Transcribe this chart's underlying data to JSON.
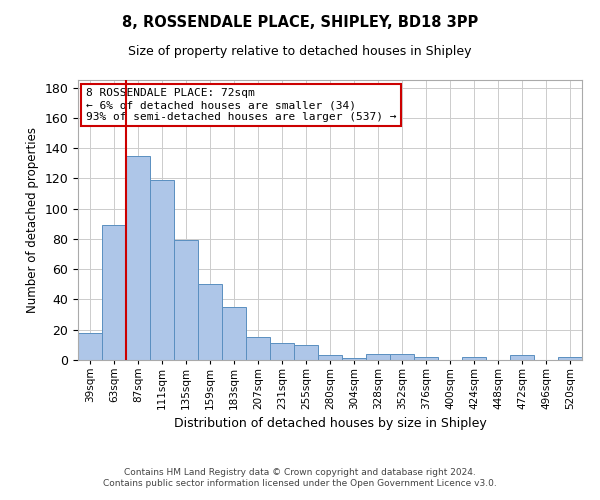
{
  "title1": "8, ROSSENDALE PLACE, SHIPLEY, BD18 3PP",
  "title2": "Size of property relative to detached houses in Shipley",
  "xlabel": "Distribution of detached houses by size in Shipley",
  "ylabel": "Number of detached properties",
  "footer1": "Contains HM Land Registry data © Crown copyright and database right 2024.",
  "footer2": "Contains public sector information licensed under the Open Government Licence v3.0.",
  "annotation_line1": "8 ROSSENDALE PLACE: 72sqm",
  "annotation_line2": "← 6% of detached houses are smaller (34)",
  "annotation_line3": "93% of semi-detached houses are larger (537) →",
  "bar_color": "#aec6e8",
  "bar_edge_color": "#5a8fc0",
  "vline_color": "#cc0000",
  "vline_x": 1.5,
  "categories": [
    "39sqm",
    "63sqm",
    "87sqm",
    "111sqm",
    "135sqm",
    "159sqm",
    "183sqm",
    "207sqm",
    "231sqm",
    "255sqm",
    "280sqm",
    "304sqm",
    "328sqm",
    "352sqm",
    "376sqm",
    "400sqm",
    "424sqm",
    "448sqm",
    "472sqm",
    "496sqm",
    "520sqm"
  ],
  "values": [
    18,
    89,
    135,
    119,
    79,
    50,
    35,
    15,
    11,
    10,
    3,
    1,
    4,
    4,
    2,
    0,
    2,
    0,
    3,
    0,
    2
  ],
  "ylim": [
    0,
    185
  ],
  "yticks": [
    0,
    20,
    40,
    60,
    80,
    100,
    120,
    140,
    160,
    180
  ],
  "grid_color": "#cccccc",
  "bg_color": "#ffffff",
  "annotation_box_color": "#ffffff",
  "annotation_box_edgecolor": "#cc0000"
}
